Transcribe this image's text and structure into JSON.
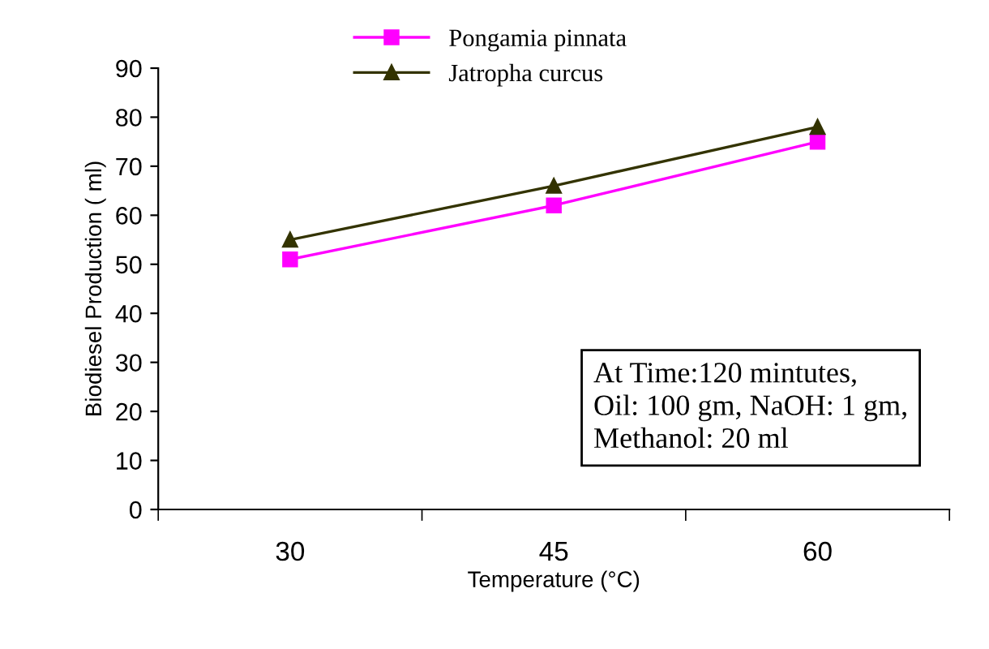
{
  "chart_data": {
    "type": "line",
    "xlabel": "Temperature (°C)",
    "ylabel": "Biodiesel Production ( ml)",
    "categories": [
      "30",
      "45",
      "60"
    ],
    "series": [
      {
        "name": "Pongamia pinnata",
        "color": "#ff00ff",
        "marker": "square",
        "values": [
          51,
          62,
          75
        ]
      },
      {
        "name": "Jatropha curcus",
        "color": "#333300",
        "marker": "triangle",
        "values": [
          55,
          66,
          78
        ]
      }
    ],
    "ylim": [
      0,
      90
    ],
    "yticks": [
      0,
      10,
      20,
      30,
      40,
      50,
      60,
      70,
      80,
      90
    ],
    "grid": false,
    "legend": "top",
    "annotations": [
      "At Time:120 mintutes,\nOil: 100 gm, NaOH: 1 gm,\nMethanol: 20 ml"
    ]
  }
}
